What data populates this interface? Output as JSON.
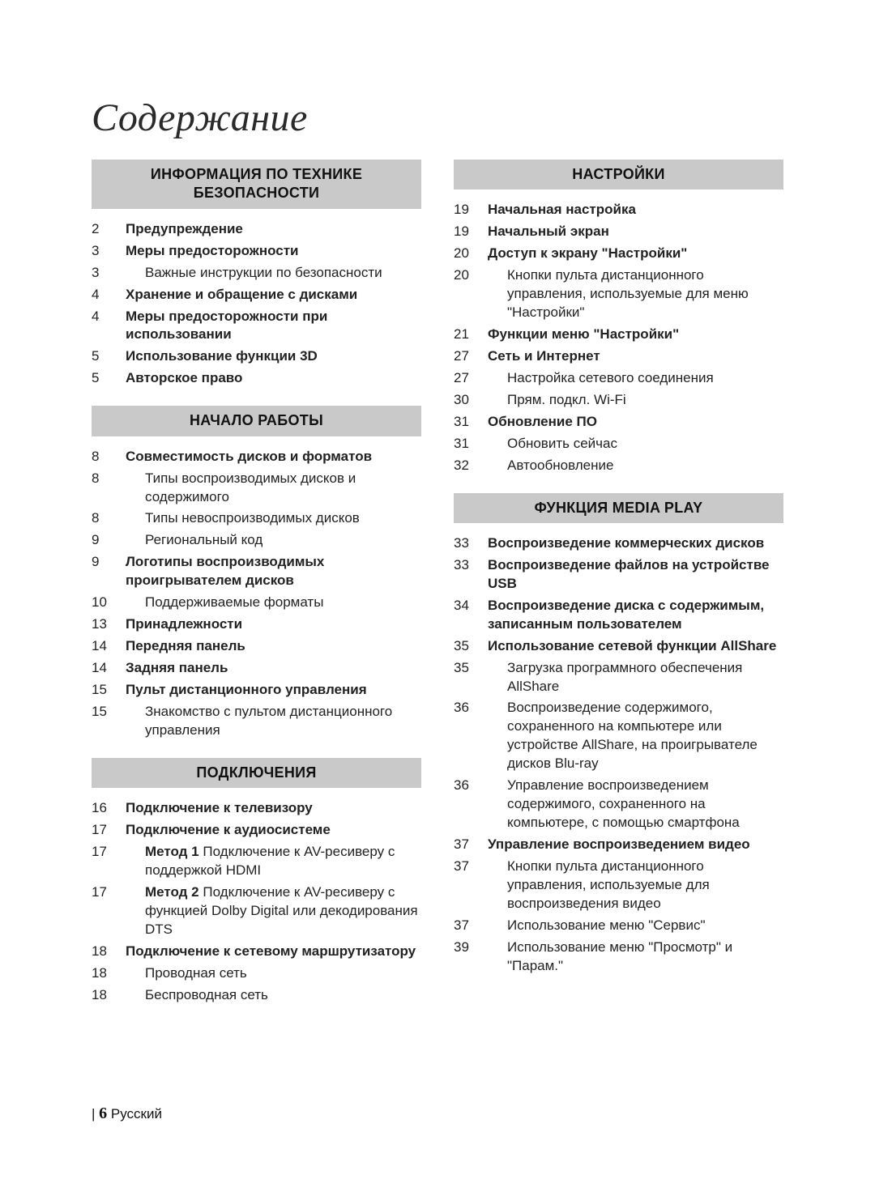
{
  "title": "Содержание",
  "footer": {
    "bar": "|",
    "page_number": "6",
    "lang": "Русский"
  },
  "left": [
    {
      "heading": "ИНФОРМАЦИЯ ПО ТЕХНИКЕ БЕЗОПАСНОСТИ",
      "first": true,
      "entries": [
        {
          "page": "2",
          "text": "Предупреждение",
          "bold": true
        },
        {
          "page": "3",
          "text": "Меры предосторожности",
          "bold": true
        },
        {
          "page": "3",
          "text": "Важные инструкции по безопасности",
          "sub": true
        },
        {
          "page": "4",
          "text": "Хранение и обращение с дисками",
          "bold": true
        },
        {
          "page": "4",
          "text": "Меры предосторожности при использовании",
          "bold": true
        },
        {
          "page": "5",
          "text": "Использование функции 3D",
          "bold": true
        },
        {
          "page": "5",
          "text": "Авторское право",
          "bold": true
        }
      ]
    },
    {
      "heading": "НАЧАЛО РАБОТЫ",
      "entries": [
        {
          "page": "8",
          "text": "Совместимость дисков и форматов",
          "bold": true
        },
        {
          "page": "8",
          "text": "Типы воспроизводимых дисков и содержимого",
          "sub": true
        },
        {
          "page": "8",
          "text": "Типы невоспроизводимых дисков",
          "sub": true
        },
        {
          "page": "9",
          "text": "Региональный код",
          "sub": true
        },
        {
          "page": "9",
          "text": "Логотипы воспроизводимых проигрывателем дисков",
          "bold": true
        },
        {
          "page": "10",
          "text": "Поддерживаемые форматы",
          "sub": true
        },
        {
          "page": "13",
          "text": "Принадлежности",
          "bold": true
        },
        {
          "page": "14",
          "text": "Передняя панель",
          "bold": true
        },
        {
          "page": "14",
          "text": "Задняя панель",
          "bold": true
        },
        {
          "page": "15",
          "text": "Пульт дистанционного управления",
          "bold": true
        },
        {
          "page": "15",
          "text": "Знакомство с пультом дистанционного управления",
          "sub": true
        }
      ]
    },
    {
      "heading": "ПОДКЛЮЧЕНИЯ",
      "entries": [
        {
          "page": "16",
          "text": "Подключение к телевизору",
          "bold": true
        },
        {
          "page": "17",
          "text": "Подключение к аудиосистеме",
          "bold": true
        },
        {
          "page": "17",
          "lead": "Метод 1 ",
          "text": "Подключение к AV-ресиверу с поддержкой HDMI",
          "sub": true,
          "inlineBold": true
        },
        {
          "page": "17",
          "lead": "Метод 2 ",
          "text": "Подключение к AV-ресиверу с функцией Dolby Digital или декодирования DTS",
          "sub": true,
          "inlineBold": true
        },
        {
          "page": "18",
          "text": "Подключение к сетевому маршрутизатору",
          "bold": true
        },
        {
          "page": "18",
          "text": "Проводная сеть",
          "sub": true
        },
        {
          "page": "18",
          "text": "Беспроводная сеть",
          "sub": true
        }
      ]
    }
  ],
  "right": [
    {
      "heading": "НАСТРОЙКИ",
      "first": true,
      "entries": [
        {
          "page": "19",
          "text": "Начальная настройка",
          "bold": true
        },
        {
          "page": "19",
          "text": "Начальный экран",
          "bold": true
        },
        {
          "page": "20",
          "text": "Доступ к экрану \"Настройки\"",
          "bold": true
        },
        {
          "page": "20",
          "text": "Кнопки пульта дистанционного управления, используемые для меню \"Настройки\"",
          "sub": true
        },
        {
          "page": "21",
          "text": "Функции меню \"Настройки\"",
          "bold": true
        },
        {
          "page": "27",
          "text": "Сеть и Интернет",
          "bold": true
        },
        {
          "page": "27",
          "text": "Настройка сетевого соединения",
          "sub": true
        },
        {
          "page": "30",
          "text": "Прям. подкл. Wi-Fi",
          "sub": true
        },
        {
          "page": "31",
          "text": "Обновление ПО",
          "bold": true
        },
        {
          "page": "31",
          "text": "Обновить сейчас",
          "sub": true
        },
        {
          "page": "32",
          "text": "Автообновление",
          "sub": true
        }
      ]
    },
    {
      "heading": "ФУНКЦИЯ MEDIA PLAY",
      "entries": [
        {
          "page": "33",
          "text": "Воспроизведение коммерческих дисков",
          "bold": true
        },
        {
          "page": "33",
          "text": "Воспроизведение файлов на устройстве USB",
          "bold": true
        },
        {
          "page": "34",
          "text": "Воспроизведение диска с содержимым, записанным пользователем",
          "bold": true
        },
        {
          "page": "35",
          "text": "Использование сетевой функции AllShare",
          "bold": true
        },
        {
          "page": "35",
          "text": "Загрузка программного обеспечения AllShare",
          "sub": true
        },
        {
          "page": "36",
          "text": "Воспроизведение содержимого, сохраненного на компьютере или устройстве AllShare, на проигрывателе дисков Blu-ray",
          "sub": true
        },
        {
          "page": "36",
          "text": "Управление воспроизведением содержимого, сохраненного на компьютере, с помощью смартфона",
          "sub": true
        },
        {
          "page": "37",
          "text": "Управление воспроизведением видео",
          "bold": true
        },
        {
          "page": "37",
          "text": "Кнопки пульта дистанционного управления, используемые для воспроизведения видео",
          "sub": true
        },
        {
          "page": "37",
          "text": "Использование меню \"Сервис\"",
          "sub": true
        },
        {
          "page": "39",
          "text": "Использование меню \"Просмотр\" и \"Парам.\"",
          "sub": true
        }
      ]
    }
  ]
}
